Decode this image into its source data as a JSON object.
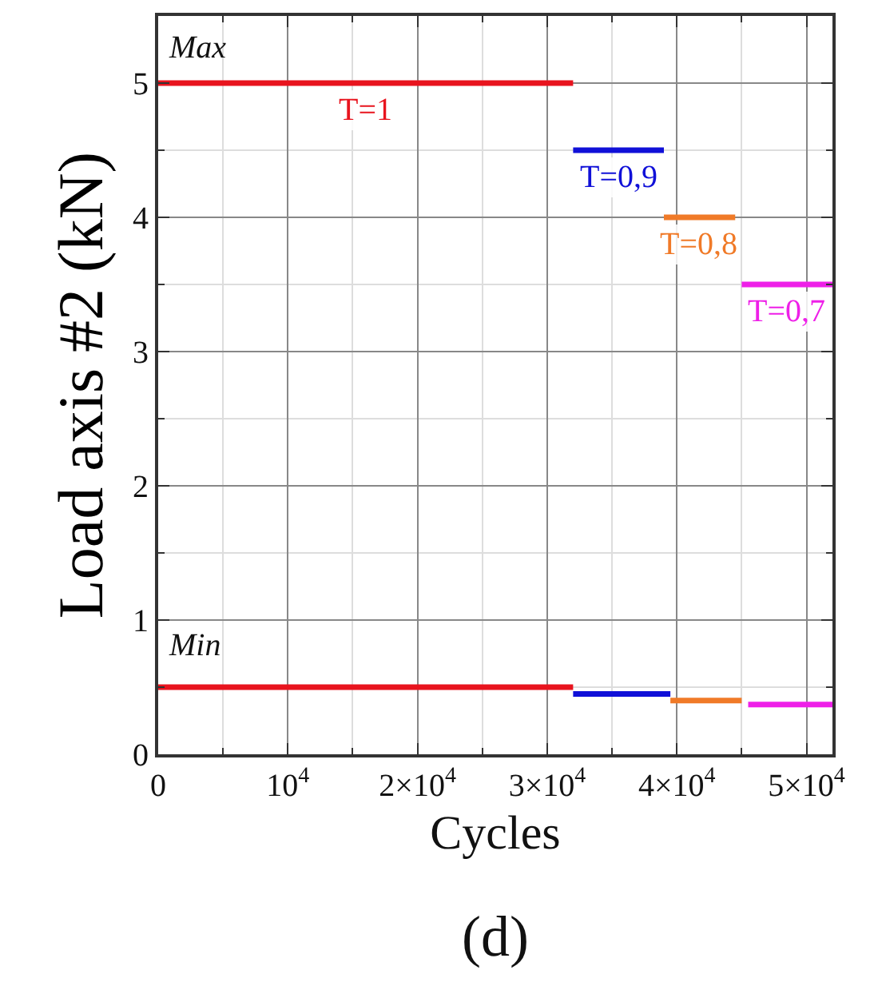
{
  "chart_data": {
    "type": "line",
    "xlabel": "Cycles",
    "ylabel": "Load axis #2 (kN)",
    "xlim": [
      0,
      52000
    ],
    "ylim": [
      0,
      5.5
    ],
    "xticks": [
      0,
      {
        "value": 10000,
        "label": "10$^{4}$"
      },
      {
        "value": 20000,
        "label": "2×10$^{4}$"
      },
      {
        "value": 30000,
        "label": "3×10$^{4}$"
      },
      {
        "value": 40000,
        "label": "4×10$^{4}$"
      },
      {
        "value": 50000,
        "label": "5×10$^{4}$"
      }
    ],
    "yticks": [
      0,
      1,
      2,
      3,
      4,
      5
    ],
    "grid": true,
    "legend": false,
    "marker": "none",
    "line_style": "solid",
    "series": [
      {
        "name": "T=1",
        "color": "#e8141e",
        "x": [
          0,
          32000
        ],
        "values": [
          5,
          5
        ]
      },
      {
        "name": "T=0,9",
        "color": "#1010d8",
        "x": [
          32000,
          39000
        ],
        "values": [
          4.5,
          4.5
        ]
      },
      {
        "name": "T=0,8",
        "color": "#f07a28",
        "x": [
          39000,
          44500
        ],
        "values": [
          4.0,
          4.0
        ]
      },
      {
        "name": "T=0,7",
        "color": "#ee20e8",
        "x": [
          45000,
          52000
        ],
        "values": [
          3.5,
          3.5
        ]
      },
      {
        "color": "#e8141e",
        "x": [
          0,
          32000
        ],
        "values": [
          0.5,
          0.5
        ]
      },
      {
        "color": "#1010d8",
        "x": [
          32000,
          39500
        ],
        "values": [
          0.45,
          0.45
        ]
      },
      {
        "color": "#f07a28",
        "x": [
          39500,
          45000
        ],
        "values": [
          0.4,
          0.4
        ]
      },
      {
        "color": "#ee20e8",
        "x": [
          45500,
          52000
        ],
        "values": [
          0.37,
          0.37
        ]
      }
    ],
    "annotations": [
      "Max",
      "Min",
      "(d)"
    ]
  }
}
